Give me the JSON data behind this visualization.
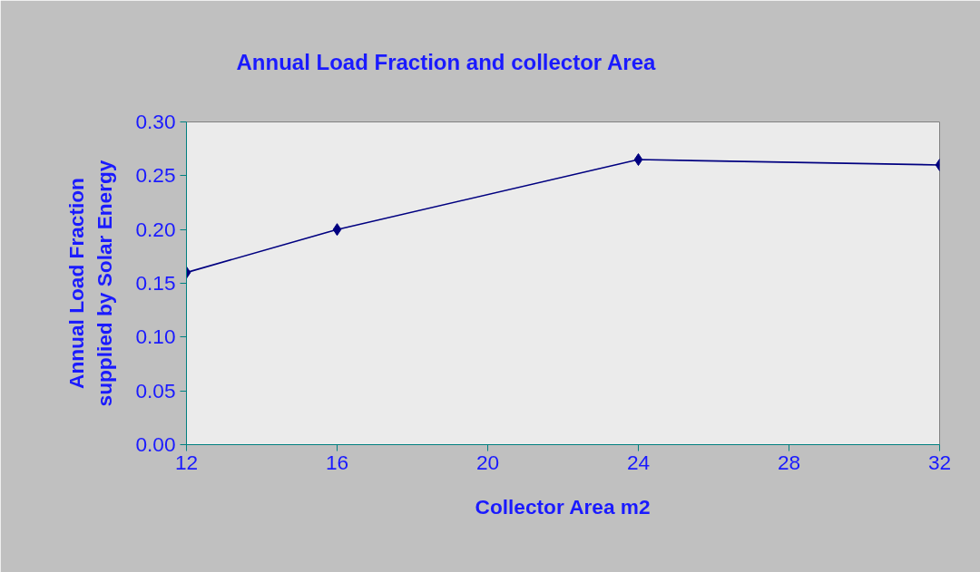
{
  "chart_data": {
    "type": "line",
    "title": "Annual Load Fraction and collector Area",
    "xlabel": "Collector Area m2",
    "ylabel": "Annual Load Fraction supplied by Solar Energy",
    "x": [
      12,
      16,
      24,
      32
    ],
    "series": [
      {
        "color": "#000080",
        "values": [
          0.16,
          0.2,
          0.265,
          0.26
        ]
      }
    ],
    "xlim": [
      12,
      32
    ],
    "xticks": [
      12,
      16,
      20,
      24,
      28,
      32
    ],
    "ylim": [
      0,
      0.3
    ],
    "yticks": [
      {
        "value": 0,
        "label": "0.00"
      },
      {
        "value": 0.05,
        "label": "0.05"
      },
      {
        "value": 0.1,
        "label": "0.10"
      },
      {
        "value": 0.15,
        "label": "0.15"
      },
      {
        "value": 0.2,
        "label": "0.20"
      },
      {
        "value": 0.25,
        "label": "0.25"
      },
      {
        "value": 0.3,
        "label": "0.30"
      }
    ],
    "grid": false,
    "marker": "diamond",
    "line_style": "solid"
  }
}
